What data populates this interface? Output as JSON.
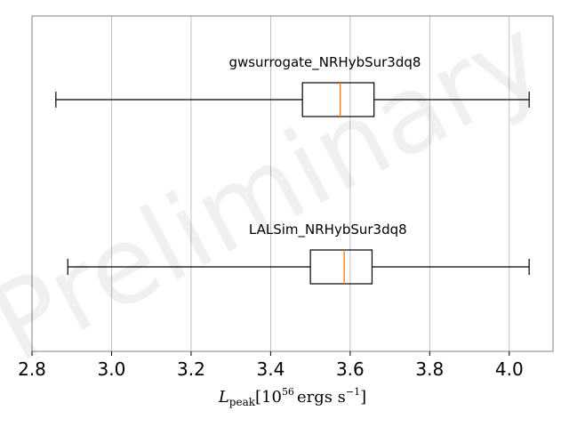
{
  "chart_data": {
    "type": "boxplot",
    "orientation": "horizontal",
    "title": "",
    "watermark": "Preliminary",
    "xlabel": {
      "symbol": "L",
      "subscript": "peak",
      "open": "[10",
      "exponent": "56",
      "units": "ergs s",
      "units_exponent": "−1",
      "close": "]"
    },
    "xlim": [
      2.8,
      4.11
    ],
    "xticks": [
      "2.8",
      "3.0",
      "3.2",
      "3.4",
      "3.6",
      "3.8",
      "4.0"
    ],
    "x_grid": true,
    "series": [
      {
        "name": "gwsurrogate_NRHybSur3dq8",
        "whisker_low": 2.86,
        "q1": 3.48,
        "median": 3.575,
        "q3": 3.66,
        "whisker_high": 4.05
      },
      {
        "name": "LALSim_NRHybSur3dq8",
        "whisker_low": 2.89,
        "q1": 3.5,
        "median": 3.585,
        "q3": 3.655,
        "whisker_high": 4.05
      }
    ],
    "colors": {
      "box": "#000000",
      "median": "#ff7f0e",
      "grid": "#b0b0b0",
      "axes": "#808080"
    }
  }
}
